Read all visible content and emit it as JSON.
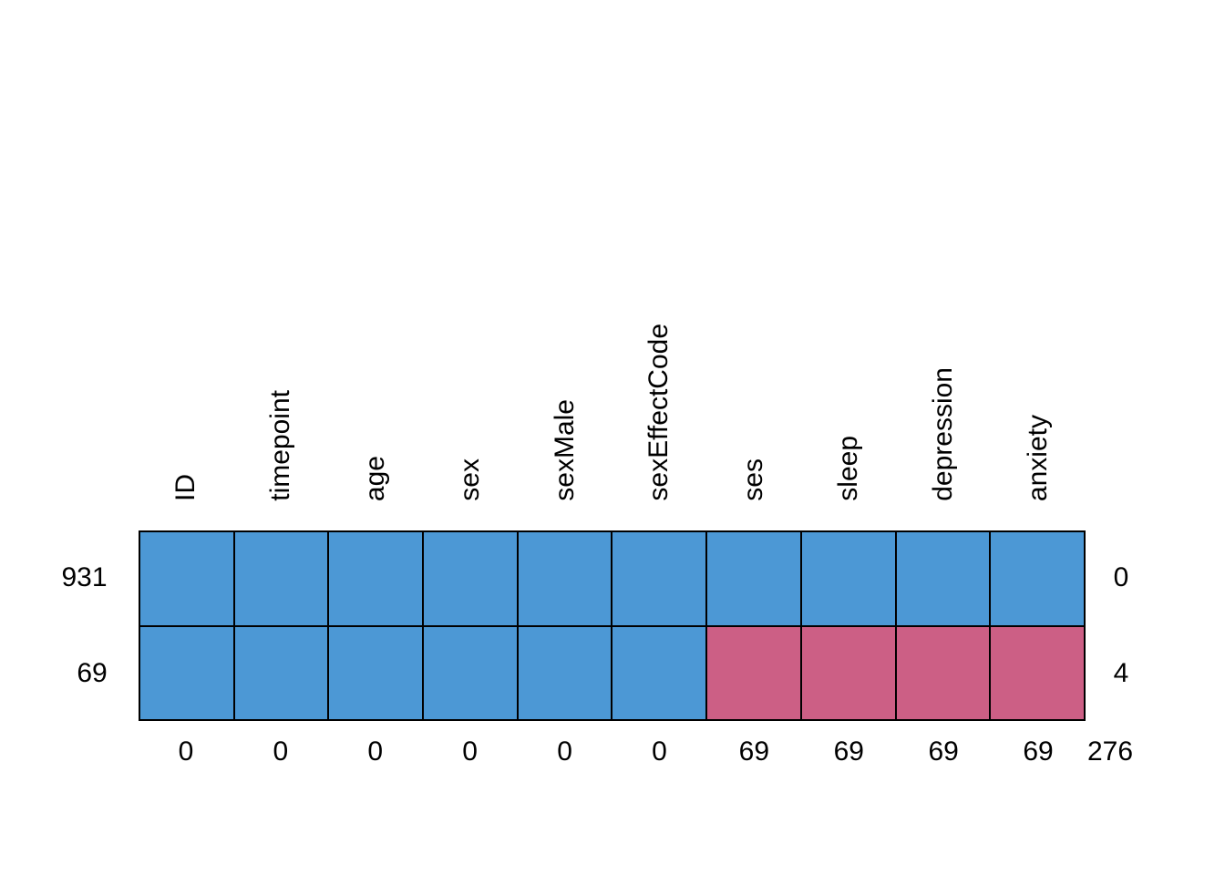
{
  "chart_data": {
    "type": "heatmap",
    "subtype": "missing-data-pattern",
    "columns": [
      "ID",
      "timepoint",
      "age",
      "sex",
      "sexMale",
      "sexEffectCode",
      "ses",
      "sleep",
      "depression",
      "anxiety"
    ],
    "rows": [
      {
        "count": "931",
        "pattern": [
          1,
          1,
          1,
          1,
          1,
          1,
          1,
          1,
          1,
          1
        ],
        "n_missing": "0"
      },
      {
        "count": "69",
        "pattern": [
          1,
          1,
          1,
          1,
          1,
          1,
          0,
          0,
          0,
          0
        ],
        "n_missing": "4"
      }
    ],
    "col_missing": [
      "0",
      "0",
      "0",
      "0",
      "0",
      "0",
      "69",
      "69",
      "69",
      "69"
    ],
    "total_missing": "276",
    "colors": {
      "observed": "#4C98D5",
      "missing": "#CC5F85",
      "border": "#000000",
      "background": "#ffffff"
    },
    "layout": {
      "legend": "none",
      "grid": "off",
      "column_labels_rotated_degrees": 90
    }
  }
}
